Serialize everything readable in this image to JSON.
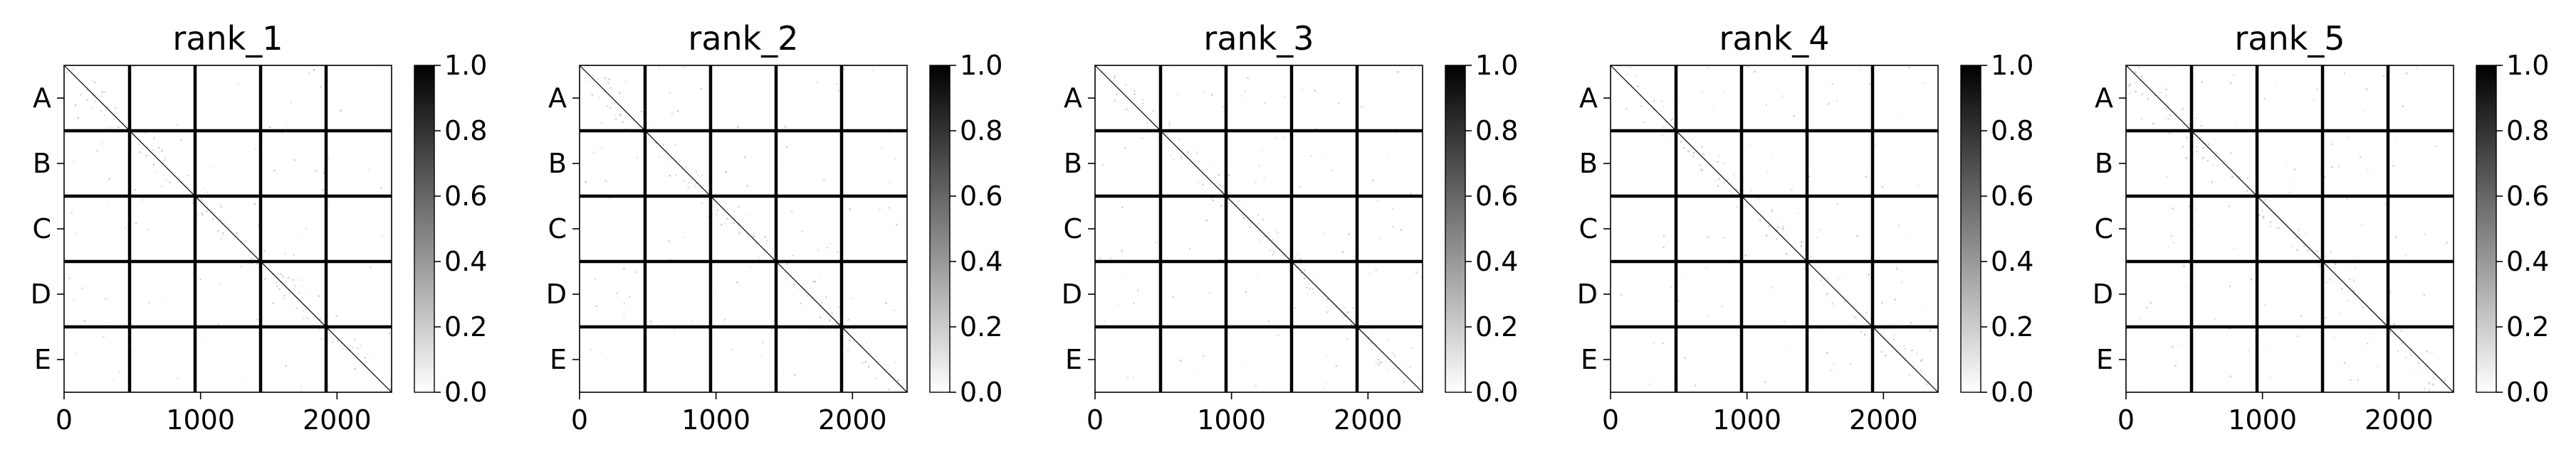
{
  "chart_data": {
    "type": "heatmap",
    "colormap": "gray_r",
    "colorbar": {
      "range": [
        0.0,
        1.0
      ],
      "ticks": [
        "0.0",
        "0.2",
        "0.4",
        "0.6",
        "0.8",
        "1.0"
      ]
    },
    "x_range": [
      0,
      2400
    ],
    "x_ticks": [
      {
        "label": "0",
        "value": 0
      },
      {
        "label": "1000",
        "value": 1000
      },
      {
        "label": "2000",
        "value": 2000
      }
    ],
    "y_categories": [
      "A",
      "B",
      "C",
      "D",
      "E"
    ],
    "block_boundaries": [
      480,
      960,
      1440,
      1920
    ],
    "panels": [
      {
        "title": "rank_1"
      },
      {
        "title": "rank_2"
      },
      {
        "title": "rank_3"
      },
      {
        "title": "rank_4"
      },
      {
        "title": "rank_5"
      }
    ]
  }
}
